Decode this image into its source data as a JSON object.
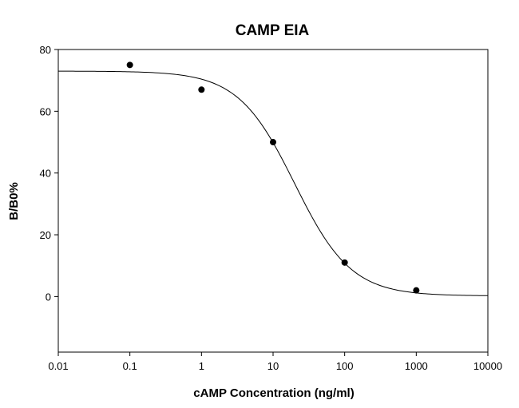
{
  "chart_data": {
    "type": "scatter",
    "title": "CAMP EIA",
    "xlabel": "cAMP Concentration (ng/ml)",
    "ylabel": "B/B0%",
    "x_scale": "log",
    "xlim": [
      0.01,
      10000
    ],
    "ylim": [
      -18,
      80
    ],
    "x_ticks": [
      0.01,
      0.1,
      1,
      10,
      100,
      1000,
      10000
    ],
    "x_tick_labels": [
      "0.01",
      "0.1",
      "1",
      "10",
      "100",
      "1000",
      "10000"
    ],
    "y_ticks": [
      0,
      20,
      40,
      60,
      80
    ],
    "y_tick_labels": [
      "0",
      "20",
      "40",
      "60",
      "80"
    ],
    "grid": false,
    "legend": "none",
    "series": [
      {
        "kind": "points",
        "x": [
          0.1,
          1,
          10,
          100,
          1000
        ],
        "y": [
          75,
          67,
          50,
          11,
          2
        ]
      },
      {
        "kind": "fit-line",
        "model": "four-parameter logistic",
        "top": 73,
        "bottom": 0.2,
        "ec50": 20,
        "hill": 1.1
      }
    ]
  }
}
